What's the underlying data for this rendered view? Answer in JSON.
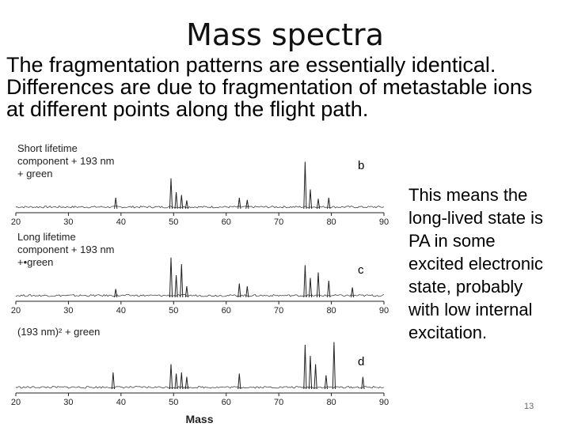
{
  "slide": {
    "title": "Mass spectra",
    "intro_lines": [
      "The fragmentation patterns are essentially identical.",
      "Differences are due to fragmentation of metastable ions",
      "at different points along the flight path."
    ],
    "side_lines": [
      "This means the",
      "long-lived state is",
      "PA in some",
      "excited electronic",
      "state, probably",
      "with low internal",
      "excitation."
    ],
    "page_number": "13"
  },
  "chart_data": [
    {
      "type": "line",
      "panel_label": "b",
      "legend_lines": [
        "Short lifetime",
        "component + 193 nm",
        "+ green"
      ],
      "xlim": [
        20,
        90
      ],
      "x_ticks": [
        "20",
        "30",
        "40",
        "50",
        "60",
        "70",
        "80",
        "90"
      ],
      "peaks": [
        {
          "x": 39,
          "h": 0.2
        },
        {
          "x": 49.5,
          "h": 0.55
        },
        {
          "x": 50.5,
          "h": 0.3
        },
        {
          "x": 51.5,
          "h": 0.25
        },
        {
          "x": 52.5,
          "h": 0.15
        },
        {
          "x": 62.5,
          "h": 0.2
        },
        {
          "x": 64,
          "h": 0.16
        },
        {
          "x": 75,
          "h": 0.85
        },
        {
          "x": 76,
          "h": 0.35
        },
        {
          "x": 77.5,
          "h": 0.18
        },
        {
          "x": 79.5,
          "h": 0.2
        }
      ]
    },
    {
      "type": "line",
      "panel_label": "c",
      "legend_lines": [
        "Long lifetime",
        "component + 193 nm",
        "+•green"
      ],
      "xlim": [
        20,
        90
      ],
      "x_ticks": [
        "20",
        "30",
        "40",
        "50",
        "60",
        "70",
        "80",
        "90"
      ],
      "peaks": [
        {
          "x": 39,
          "h": 0.15
        },
        {
          "x": 49.5,
          "h": 0.72
        },
        {
          "x": 50.5,
          "h": 0.4
        },
        {
          "x": 51.5,
          "h": 0.6
        },
        {
          "x": 52.5,
          "h": 0.2
        },
        {
          "x": 62.5,
          "h": 0.25
        },
        {
          "x": 64,
          "h": 0.2
        },
        {
          "x": 75,
          "h": 0.58
        },
        {
          "x": 76,
          "h": 0.35
        },
        {
          "x": 77.5,
          "h": 0.45
        },
        {
          "x": 79.5,
          "h": 0.3
        },
        {
          "x": 84,
          "h": 0.18
        }
      ]
    },
    {
      "type": "line",
      "panel_label": "d",
      "legend_lines": [
        "(193 nm)² + green"
      ],
      "xlim": [
        20,
        90
      ],
      "x_ticks": [
        "20",
        "30",
        "40",
        "50",
        "60",
        "70",
        "80",
        "90"
      ],
      "xlabel": "Mass",
      "peaks": [
        {
          "x": 38.5,
          "h": 0.3
        },
        {
          "x": 49.5,
          "h": 0.45
        },
        {
          "x": 50.5,
          "h": 0.28
        },
        {
          "x": 51.5,
          "h": 0.3
        },
        {
          "x": 52.5,
          "h": 0.22
        },
        {
          "x": 62.5,
          "h": 0.28
        },
        {
          "x": 75,
          "h": 0.8
        },
        {
          "x": 76,
          "h": 0.6
        },
        {
          "x": 77,
          "h": 0.45
        },
        {
          "x": 79,
          "h": 0.25
        },
        {
          "x": 80.5,
          "h": 0.85
        },
        {
          "x": 86,
          "h": 0.22
        }
      ]
    }
  ]
}
